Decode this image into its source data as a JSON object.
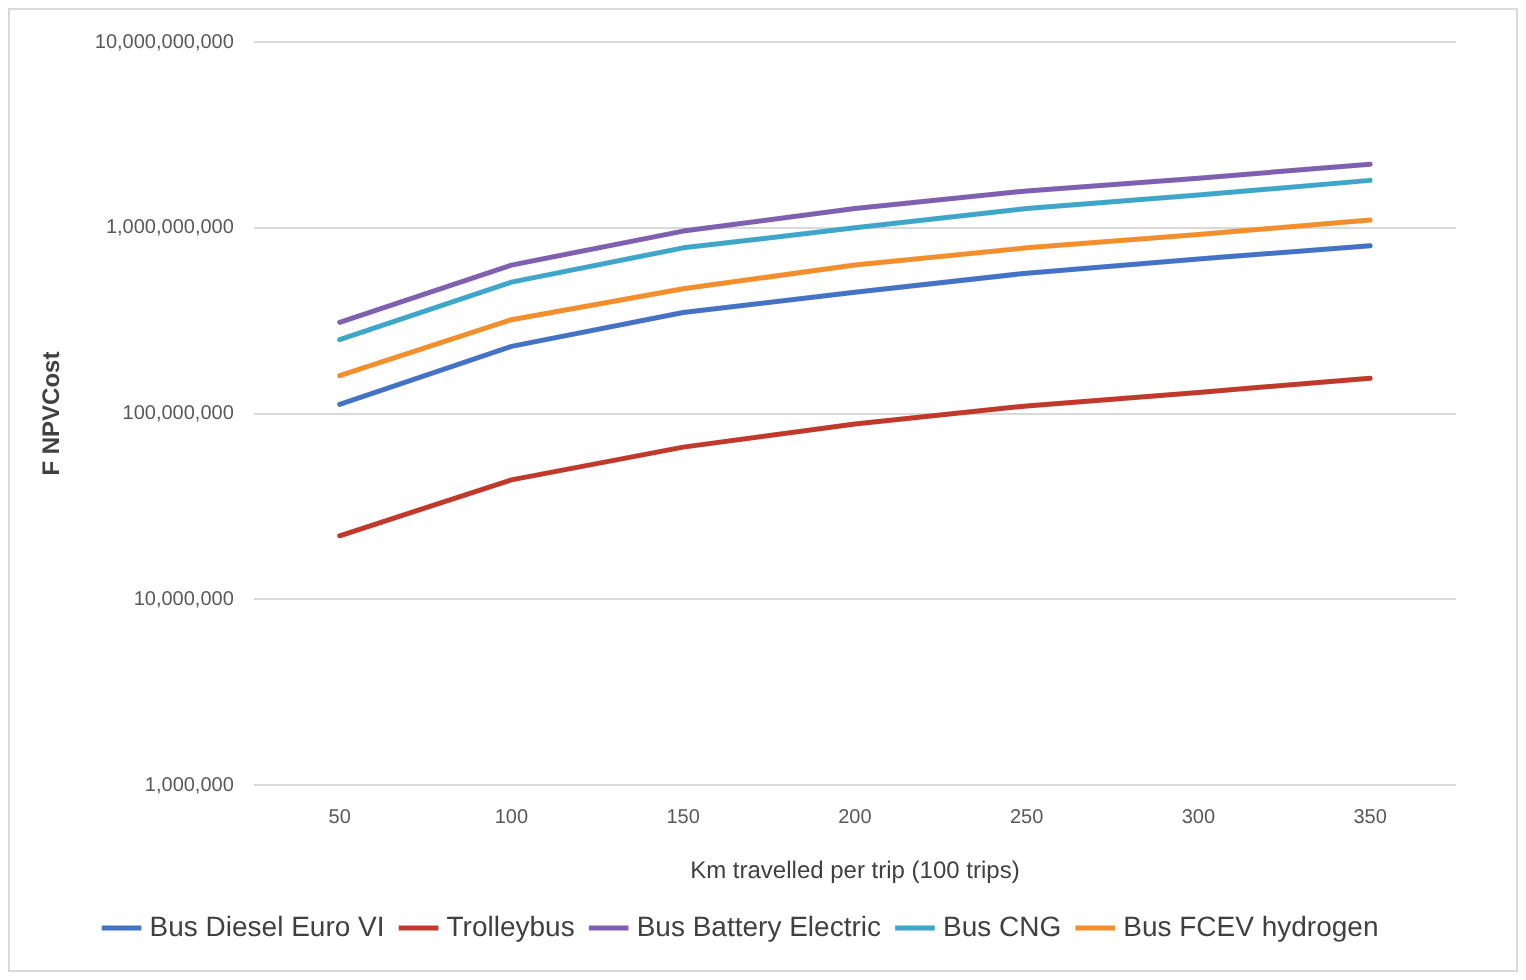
{
  "chart_data": {
    "type": "line",
    "xlabel": "Km travelled per trip (100 trips)",
    "ylabel": "F NPVCost",
    "categories": [
      "50",
      "100",
      "150",
      "200",
      "250",
      "300",
      "350"
    ],
    "series": [
      {
        "name": "Bus Diesel Euro VI",
        "color": "#4472c4",
        "values": [
          112000000,
          230000000,
          350000000,
          450000000,
          570000000,
          680000000,
          800000000
        ]
      },
      {
        "name": "Trolleybus",
        "color": "#c0392b",
        "values": [
          22000000,
          44000000,
          66000000,
          88000000,
          110000000,
          130000000,
          155000000
        ]
      },
      {
        "name": "Bus Battery Electric",
        "color": "#7f5faf",
        "values": [
          310000000,
          630000000,
          960000000,
          1270000000,
          1580000000,
          1850000000,
          2200000000
        ]
      },
      {
        "name": "Bus CNG",
        "color": "#3ea6c8",
        "values": [
          250000000,
          510000000,
          780000000,
          1000000000,
          1270000000,
          1500000000,
          1800000000
        ]
      },
      {
        "name": "Bus FCEV hydrogen",
        "color": "#f28e2b",
        "values": [
          160000000,
          320000000,
          470000000,
          630000000,
          780000000,
          920000000,
          1100000000
        ]
      }
    ],
    "log": "y",
    "ylim": [
      1000000,
      10000000000
    ],
    "yticks": [
      {
        "value": 1000000,
        "label": "1,000,000"
      },
      {
        "value": 10000000,
        "label": "10,000,000"
      },
      {
        "value": 100000000,
        "label": "100,000,000"
      },
      {
        "value": 1000000000,
        "label": "1,000,000,000"
      },
      {
        "value": 10000000000,
        "label": "10,000,000,000"
      }
    ],
    "grid": "y",
    "legend": "bottom",
    "marker": "none",
    "line_style": "solid"
  }
}
